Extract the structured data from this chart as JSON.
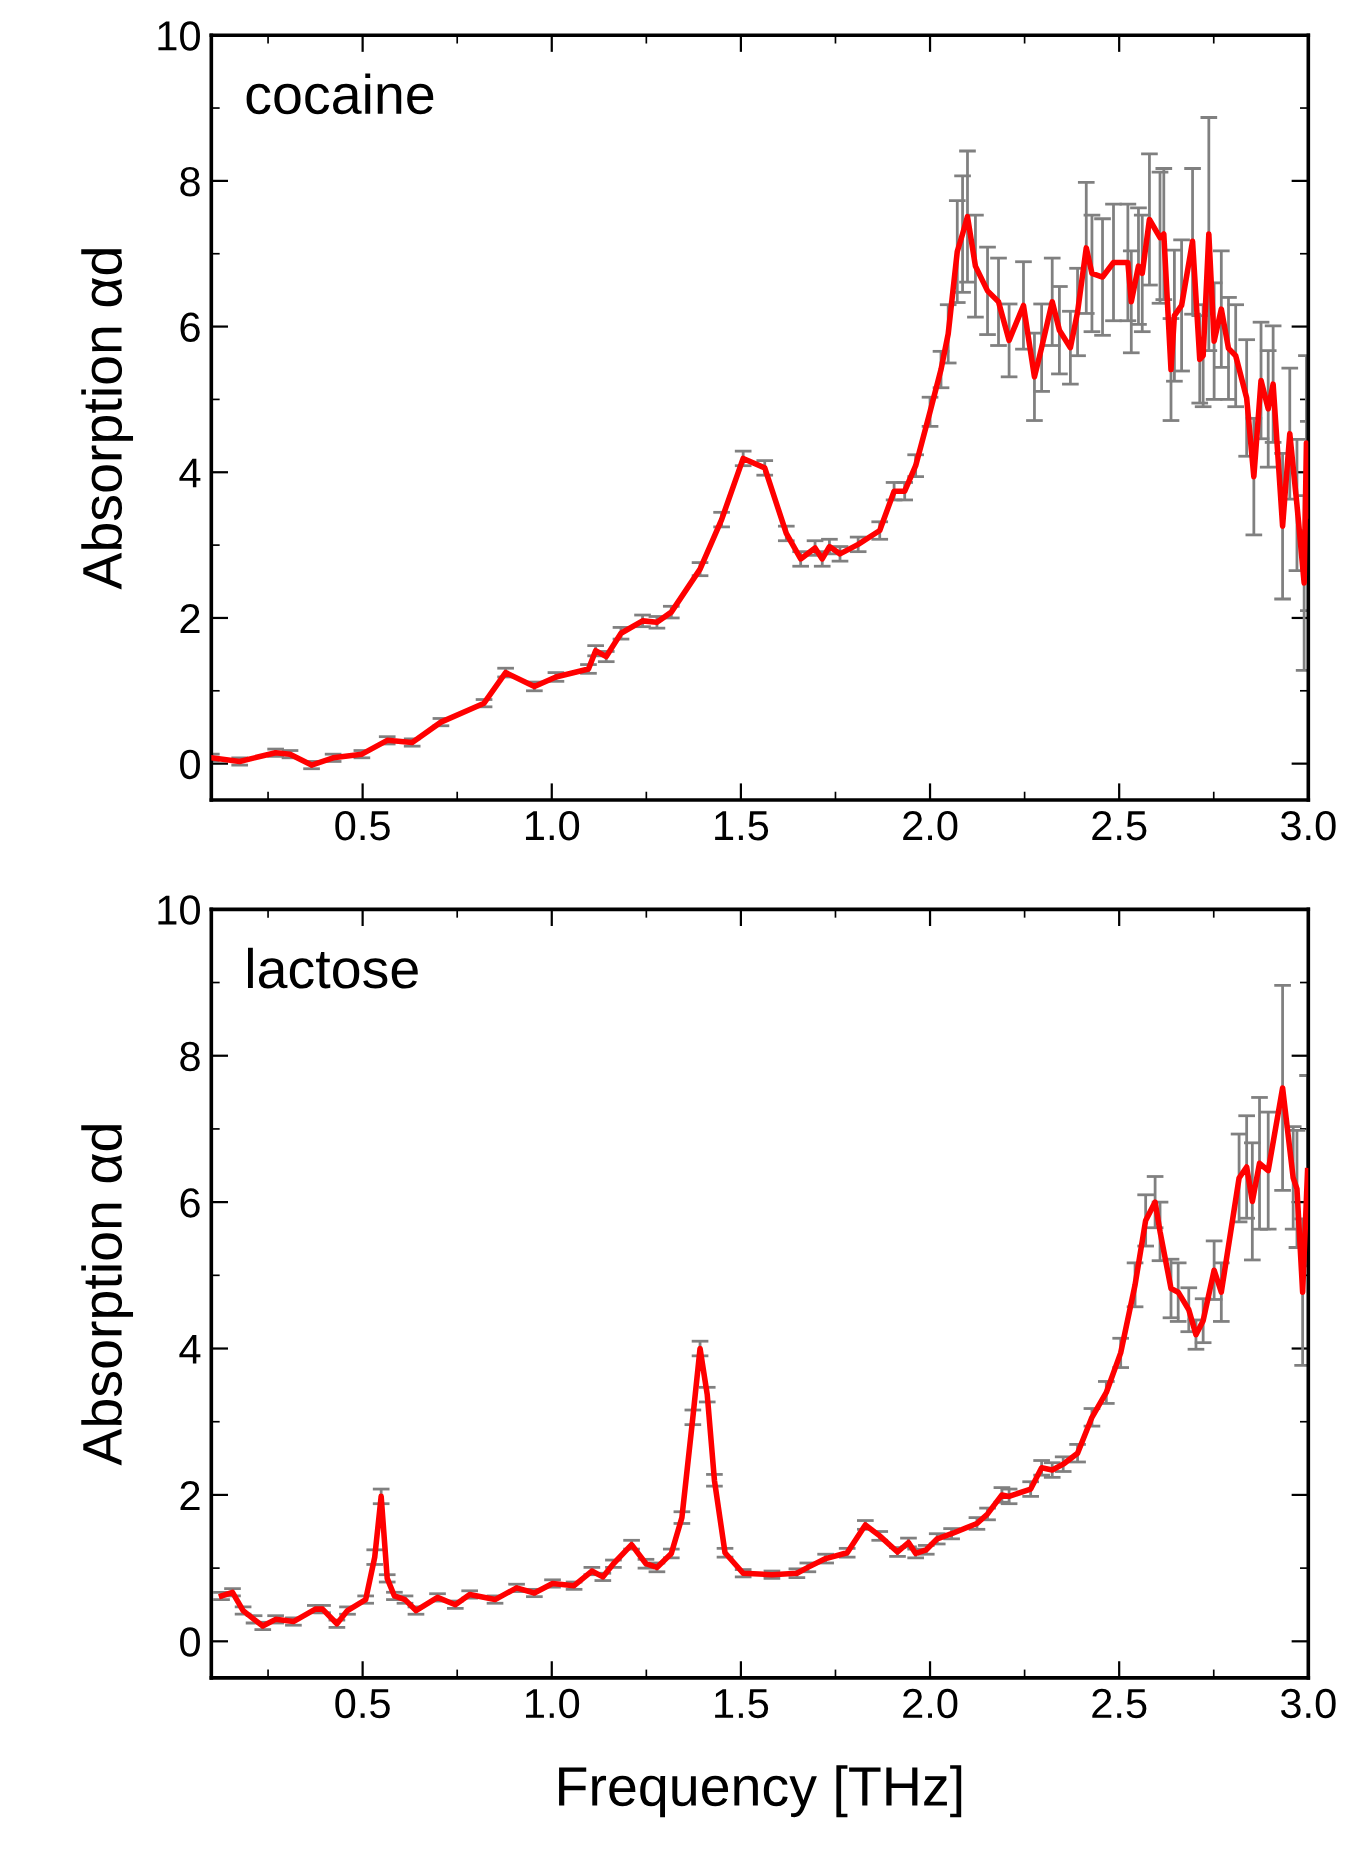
{
  "chart_data": [
    {
      "type": "line",
      "annotations": [
        "cocaine"
      ],
      "ylabel": "Absorption αd",
      "xlim": [
        0.1,
        3.0
      ],
      "ylim": [
        -0.5,
        10
      ],
      "xticks": [
        {
          "value": 0.5,
          "label": "0.5"
        },
        {
          "value": 1,
          "label": "1.0"
        },
        {
          "value": 1.5,
          "label": "1.5"
        },
        {
          "value": 2,
          "label": "2.0"
        },
        {
          "value": 2.5,
          "label": "2.5"
        },
        {
          "value": 3,
          "label": "3.0"
        }
      ],
      "yticks": [
        0,
        2,
        4,
        6,
        8,
        10
      ],
      "grid": false,
      "legend": false,
      "marker": "none",
      "line_style": "solid",
      "series": [
        {
          "color": "#ff0000",
          "x": [
            0.1,
            0.175,
            0.27,
            0.308,
            0.365,
            0.422,
            0.498,
            0.565,
            0.631,
            0.707,
            0.821,
            0.878,
            0.954,
            1.011,
            1.097,
            1.116,
            1.144,
            1.183,
            1.24,
            1.278,
            1.316,
            1.392,
            1.449,
            1.506,
            1.563,
            1.62,
            1.658,
            1.696,
            1.715,
            1.734,
            1.762,
            1.81,
            1.867,
            1.905,
            1.933,
            1.962,
            2.0,
            2.029,
            2.048,
            2.072,
            2.086,
            2.099,
            2.12,
            2.152,
            2.181,
            2.209,
            2.247,
            2.276,
            2.295,
            2.323,
            2.342,
            2.371,
            2.39,
            2.413,
            2.428,
            2.456,
            2.485,
            2.523,
            2.532,
            2.551,
            2.561,
            2.58,
            2.608,
            2.618,
            2.637,
            2.646,
            2.665,
            2.694,
            2.713,
            2.722,
            2.737,
            2.751,
            2.77,
            2.789,
            2.808,
            2.837,
            2.856,
            2.875,
            2.894,
            2.907,
            2.932,
            2.951,
            2.97,
            2.989,
            2.995,
            3.0
          ],
          "values": [
            0.08,
            0.03,
            0.15,
            0.13,
            -0.02,
            0.08,
            0.13,
            0.32,
            0.29,
            0.57,
            0.83,
            1.25,
            1.06,
            1.19,
            1.3,
            1.55,
            1.47,
            1.79,
            1.96,
            1.94,
            2.08,
            2.67,
            3.35,
            4.19,
            4.06,
            3.16,
            2.81,
            2.96,
            2.81,
            2.98,
            2.88,
            3.01,
            3.2,
            3.74,
            3.74,
            4.09,
            4.83,
            5.41,
            5.9,
            7.03,
            7.27,
            7.51,
            6.83,
            6.49,
            6.34,
            5.81,
            6.29,
            5.31,
            5.71,
            6.34,
            5.95,
            5.71,
            6.2,
            7.08,
            6.73,
            6.68,
            6.88,
            6.88,
            6.34,
            6.83,
            6.73,
            7.47,
            7.22,
            7.27,
            5.41,
            6.15,
            6.29,
            7.17,
            5.55,
            5.6,
            7.27,
            5.8,
            6.24,
            5.7,
            5.6,
            5.02,
            3.94,
            5.26,
            4.87,
            5.21,
            3.26,
            4.53,
            3.55,
            2.48,
            4.4,
            3.4
          ],
          "errors": [
            0.05,
            0.05,
            0.05,
            0.05,
            0.05,
            0.05,
            0.05,
            0.05,
            0.05,
            0.05,
            0.05,
            0.06,
            0.06,
            0.06,
            0.06,
            0.07,
            0.07,
            0.08,
            0.08,
            0.08,
            0.08,
            0.09,
            0.1,
            0.1,
            0.1,
            0.1,
            0.1,
            0.1,
            0.1,
            0.1,
            0.1,
            0.1,
            0.12,
            0.12,
            0.12,
            0.15,
            0.2,
            0.25,
            0.4,
            0.7,
            0.8,
            0.9,
            0.7,
            0.6,
            0.6,
            0.5,
            0.6,
            0.6,
            0.6,
            0.6,
            0.6,
            0.5,
            0.6,
            0.9,
            0.8,
            0.8,
            0.8,
            0.8,
            0.7,
            0.8,
            0.8,
            0.9,
            0.9,
            0.9,
            0.7,
            0.9,
            0.9,
            1.0,
            0.6,
            0.7,
            1.6,
            0.8,
            0.8,
            0.7,
            0.7,
            0.8,
            0.8,
            0.8,
            0.8,
            0.8,
            1.0,
            0.9,
            0.9,
            1.2,
            1.2,
            1.3
          ]
        }
      ]
    },
    {
      "type": "line",
      "annotations": [
        "lactose"
      ],
      "xlabel": "Frequency [THz]",
      "ylabel": "Absorption αd",
      "xlim": [
        0.1,
        3.0
      ],
      "ylim": [
        -0.5,
        10
      ],
      "xticks": [
        {
          "value": 0.5,
          "label": "0.5"
        },
        {
          "value": 1,
          "label": "1.0"
        },
        {
          "value": 1.5,
          "label": "1.5"
        },
        {
          "value": 2,
          "label": "2.0"
        },
        {
          "value": 2.5,
          "label": "2.5"
        },
        {
          "value": 3,
          "label": "3.0"
        }
      ],
      "yticks": [
        0,
        2,
        4,
        6,
        8,
        10
      ],
      "grid": false,
      "legend": false,
      "marker": "none",
      "line_style": "solid",
      "series": [
        {
          "color": "#ff0000",
          "x": [
            0.127,
            0.156,
            0.184,
            0.213,
            0.236,
            0.27,
            0.317,
            0.375,
            0.394,
            0.432,
            0.46,
            0.508,
            0.532,
            0.549,
            0.565,
            0.584,
            0.612,
            0.641,
            0.698,
            0.745,
            0.783,
            0.85,
            0.907,
            0.954,
            1.002,
            1.059,
            1.106,
            1.135,
            1.163,
            1.211,
            1.249,
            1.278,
            1.316,
            1.344,
            1.373,
            1.392,
            1.411,
            1.43,
            1.458,
            1.506,
            1.582,
            1.648,
            1.677,
            1.724,
            1.781,
            1.829,
            1.867,
            1.914,
            1.943,
            1.962,
            1.99,
            2.019,
            2.057,
            2.124,
            2.152,
            2.19,
            2.209,
            2.266,
            2.295,
            2.323,
            2.352,
            2.39,
            2.428,
            2.466,
            2.504,
            2.542,
            2.57,
            2.595,
            2.608,
            2.637,
            2.656,
            2.684,
            2.703,
            2.722,
            2.751,
            2.77,
            2.817,
            2.837,
            2.852,
            2.871,
            2.894,
            2.932,
            2.96,
            2.97,
            2.985,
            2.998
          ],
          "values": [
            0.62,
            0.67,
            0.42,
            0.3,
            0.21,
            0.3,
            0.27,
            0.44,
            0.44,
            0.24,
            0.42,
            0.57,
            1.15,
            1.98,
            0.86,
            0.62,
            0.57,
            0.42,
            0.6,
            0.5,
            0.64,
            0.57,
            0.73,
            0.66,
            0.79,
            0.76,
            0.96,
            0.88,
            1.06,
            1.32,
            1.06,
            1.01,
            1.2,
            1.69,
            3.06,
            4.0,
            3.37,
            2.2,
            1.21,
            0.93,
            0.91,
            0.93,
            1.01,
            1.13,
            1.21,
            1.59,
            1.44,
            1.22,
            1.35,
            1.2,
            1.25,
            1.4,
            1.47,
            1.61,
            1.74,
            2.0,
            1.98,
            2.08,
            2.37,
            2.34,
            2.42,
            2.57,
            3.06,
            3.4,
            3.94,
            4.87,
            5.75,
            6.0,
            5.6,
            4.82,
            4.77,
            4.53,
            4.19,
            4.38,
            5.07,
            4.77,
            6.33,
            6.48,
            6.01,
            6.53,
            6.43,
            7.56,
            6.33,
            6.18,
            4.77,
            6.43
          ],
          "errors": [
            0.05,
            0.05,
            0.05,
            0.05,
            0.05,
            0.05,
            0.05,
            0.05,
            0.05,
            0.05,
            0.05,
            0.05,
            0.1,
            0.1,
            0.05,
            0.05,
            0.05,
            0.05,
            0.05,
            0.05,
            0.05,
            0.05,
            0.05,
            0.05,
            0.05,
            0.05,
            0.05,
            0.05,
            0.05,
            0.06,
            0.06,
            0.06,
            0.06,
            0.08,
            0.1,
            0.1,
            0.1,
            0.08,
            0.06,
            0.05,
            0.05,
            0.06,
            0.06,
            0.06,
            0.06,
            0.06,
            0.06,
            0.06,
            0.06,
            0.06,
            0.06,
            0.07,
            0.07,
            0.08,
            0.08,
            0.1,
            0.1,
            0.1,
            0.1,
            0.1,
            0.1,
            0.12,
            0.12,
            0.15,
            0.2,
            0.3,
            0.35,
            0.35,
            0.4,
            0.4,
            0.4,
            0.3,
            0.2,
            0.3,
            0.4,
            0.4,
            0.6,
            0.7,
            0.8,
            0.9,
            0.8,
            1.4,
            0.7,
            0.8,
            1.0,
            1.3
          ]
        }
      ]
    }
  ]
}
